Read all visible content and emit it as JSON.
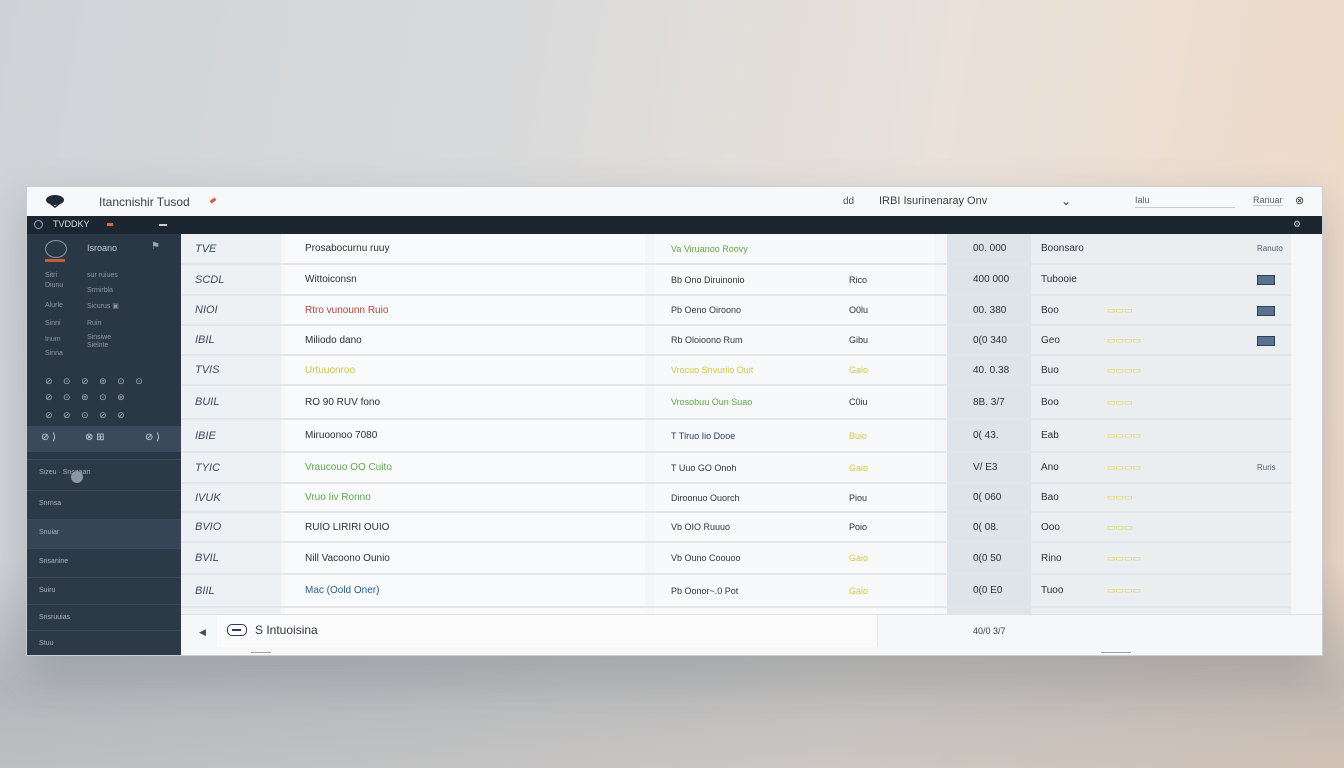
{
  "titlebar": {
    "title": "Itancnishir Tusod",
    "link": "dd",
    "environment": "IRBI Isurinenaray Onv",
    "search_value": "Ialu",
    "user": "Ranuar",
    "close_glyph": "⊗"
  },
  "menubar": {
    "label": "TVDDKY"
  },
  "sidebar": {
    "brand": "Isroano",
    "small_lines": [
      [
        "Sitri",
        "sur ruiues"
      ],
      [
        "Diunu",
        "Srmirbla"
      ],
      [
        "Alurle",
        "Sicurus ▣"
      ],
      [
        "Sinni",
        "Ruin"
      ],
      [
        "Inum",
        "Sinsiwe"
      ],
      [
        "Sinna",
        "Sielnte"
      ]
    ],
    "icon_rows": [
      "⊘ ⊙ ⊘ ⊚ ⊙ ⊙",
      "⊘ ⊙ ⊚ ⊙ ⊛",
      "⊘ ⊘ ⊙ ⊘ ⊘"
    ],
    "selected": {
      "left": "⊘ ⟩",
      "mid": "⊗ ⊞",
      "right": "⊘ ⟩"
    },
    "nav": [
      "Sizeu  ·  Snsaaari",
      "Snrnsa",
      "Snuiar",
      "Snsanine",
      "Suiru",
      "Snsruuias",
      "Stuu"
    ]
  },
  "rows": [
    {
      "code": "TVE",
      "name": "Prosabocurnu ruuy",
      "name_color": "#2a3038",
      "desc": "Va Viruanoo Roovy",
      "desc_color": "#5fa84a",
      "type": "",
      "num": "00.  000",
      "stat": "Boonsaro",
      "tag": "",
      "end": "Ranuto"
    },
    {
      "code": "SCDL",
      "name": "Wittoiconsn",
      "name_color": "#2a3038",
      "desc": "Bb  Ono  Diruinonio",
      "desc_color": "#30363e",
      "type": "Rico",
      "num": "400 000",
      "stat": "Tubooie",
      "tag": "",
      "end": ""
    },
    {
      "code": "NIOI",
      "name": "Rtro  vunounn Ruio",
      "name_color": "#b8433c",
      "desc": "Pb  Oeno Oiroono",
      "desc_color": "#30363e",
      "type": "O0lu",
      "num": "00.  380",
      "stat": "Boo",
      "tag": "▭▭▭",
      "end": ""
    },
    {
      "code": "IBIL",
      "name": "Miliodo dano",
      "name_color": "#2a3038",
      "desc": "Rb  Oloioono  Rum",
      "desc_color": "#30363e",
      "type": "Gibu",
      "num": "0(0  340",
      "stat": "Geo",
      "tag": "▭▭▭▭",
      "end": ""
    },
    {
      "code": "TVIS",
      "name": "Urtuuonroo",
      "name_color": "#d2c63c",
      "desc": "Vrocuo Snvuriio Ouit",
      "desc_color": "#d2c63c",
      "type": "Gaio",
      "num": "40.  0.38",
      "stat": "Buo",
      "tag": "▭▭▭▭",
      "end": ""
    },
    {
      "code": "BUIL",
      "name": "RO  90  RUV  fono",
      "name_color": "#2a3038",
      "desc": "Vrosobuu Oun Suao",
      "desc_color": "#5fa84a",
      "type": "C0iu",
      "num": "8B.  3/7",
      "stat": "Boo",
      "tag": "▭▭▭",
      "end": ""
    },
    {
      "code": "IBIE",
      "name": "Miruoonoo  7080",
      "name_color": "#2a3038",
      "desc": "T  Tlruo Iio  Dooe",
      "desc_color": "#1e3f6a",
      "type": "Buio",
      "num": "0(  43.",
      "stat": "Eab",
      "tag": "▭▭▭▭",
      "end": ""
    },
    {
      "code": "TYIC",
      "name": "Vraucouo  OO  Cuito",
      "name_color": "#5fa84a",
      "desc": "T  Uuo  GO  Onoh",
      "desc_color": "#30363e",
      "type": "Gaio",
      "num": "V/  E3",
      "stat": "Ano",
      "tag": "▭▭▭▭",
      "end": "Ruris"
    },
    {
      "code": "IVUK",
      "name": "Vruo  Iiv  Ronno",
      "name_color": "#5fa84a",
      "desc": "Diroonuo  Ouorch",
      "desc_color": "#30363e",
      "type": "Piou",
      "num": "0(  060",
      "stat": "Bao",
      "tag": "▭▭▭",
      "end": ""
    },
    {
      "code": "BVIO",
      "name": "RUIO  LIRIRI  OUIO",
      "name_color": "#2a3038",
      "desc": "Vb  OIO  Ruuuo",
      "desc_color": "#30363e",
      "type": "Poio",
      "num": "0(  08.",
      "stat": "Ooo",
      "tag": "▭▭▭",
      "end": ""
    },
    {
      "code": "BVIL",
      "name": "Nill  Vacoono  Ounio",
      "name_color": "#2a3038",
      "desc": "Vb  Ouno  Coouoo",
      "desc_color": "#30363e",
      "type": "Gaio",
      "num": "0(0  50",
      "stat": "Rino",
      "tag": "▭▭▭▭",
      "end": ""
    },
    {
      "code": "BIIL",
      "name": "Mac  (Oold  Oner)",
      "name_color": "#2a5d8f",
      "desc": "Pb  Oonor~.0  Pot",
      "desc_color": "#30363e",
      "type": "Gaio",
      "num": "0(0  E0",
      "stat": "Tuoo",
      "tag": "▭▭▭▭",
      "end": ""
    }
  ],
  "bottom": {
    "arrow": "◀",
    "search_text": "S Intuoisina",
    "total": "40/0  3/7"
  },
  "colors": {
    "sidebar_bg": "#2c3a48",
    "menubar_bg": "#1c2631",
    "accent_green": "#5fa84a",
    "accent_yellow": "#d2c63c",
    "accent_red": "#b8433c"
  }
}
